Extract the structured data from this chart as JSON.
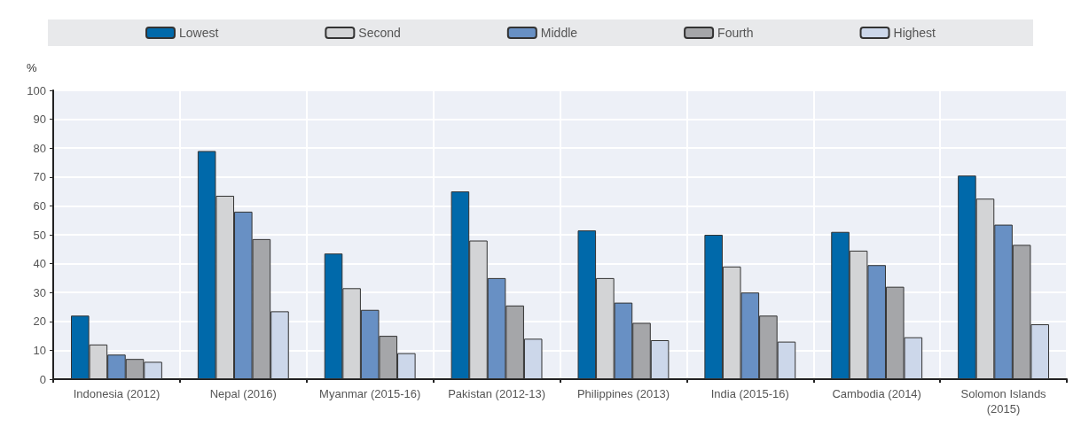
{
  "chart_data": {
    "type": "bar",
    "ylabel": "%",
    "categories": [
      "Indonesia (2012)",
      "Nepal (2016)",
      "Myanmar (2015-16)",
      "Pakistan (2012-13)",
      "Philippines (2013)",
      "India (2015-16)",
      "Cambodia (2014)",
      "Solomon Islands\n(2015)"
    ],
    "series": [
      {
        "name": "Lowest",
        "color": "#0069aa",
        "values": [
          22,
          79,
          43.5,
          65,
          51.5,
          50,
          51,
          70.5
        ]
      },
      {
        "name": "Second",
        "color": "#d3d4d6",
        "values": [
          12,
          63.5,
          31.5,
          48,
          35,
          39,
          44.5,
          62.5
        ]
      },
      {
        "name": "Middle",
        "color": "#6890c4",
        "values": [
          8.5,
          58,
          24,
          35,
          26.5,
          30,
          39.5,
          53.5
        ]
      },
      {
        "name": "Fourth",
        "color": "#a5a6a9",
        "values": [
          7,
          48.5,
          15,
          25.5,
          19.5,
          22,
          32,
          46.5
        ]
      },
      {
        "name": "Highest",
        "color": "#ccd7ea",
        "values": [
          6,
          23.5,
          9,
          14,
          13.5,
          13,
          14.5,
          19
        ]
      }
    ],
    "ylim": [
      0,
      100
    ],
    "yticks": [
      0,
      10,
      20,
      30,
      40,
      50,
      60,
      70,
      80,
      90,
      100
    ],
    "grid": true,
    "legend": "top"
  }
}
